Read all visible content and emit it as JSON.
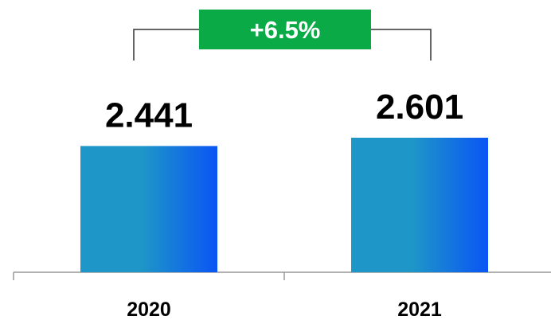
{
  "chart_data": {
    "type": "bar",
    "categories": [
      "2020",
      "2021"
    ],
    "values": [
      2.441,
      2.601
    ],
    "value_labels": [
      "2.441",
      "2.601"
    ],
    "change_label": "+6.5%",
    "title": "",
    "xlabel": "",
    "ylabel": "",
    "grid": false,
    "colors": {
      "bar_gradient_start": "#1e96c8",
      "bar_gradient_end": "#0a55f5",
      "change_badge": "#0aaa46",
      "axis": "#999999",
      "bracket": "#333333"
    }
  }
}
